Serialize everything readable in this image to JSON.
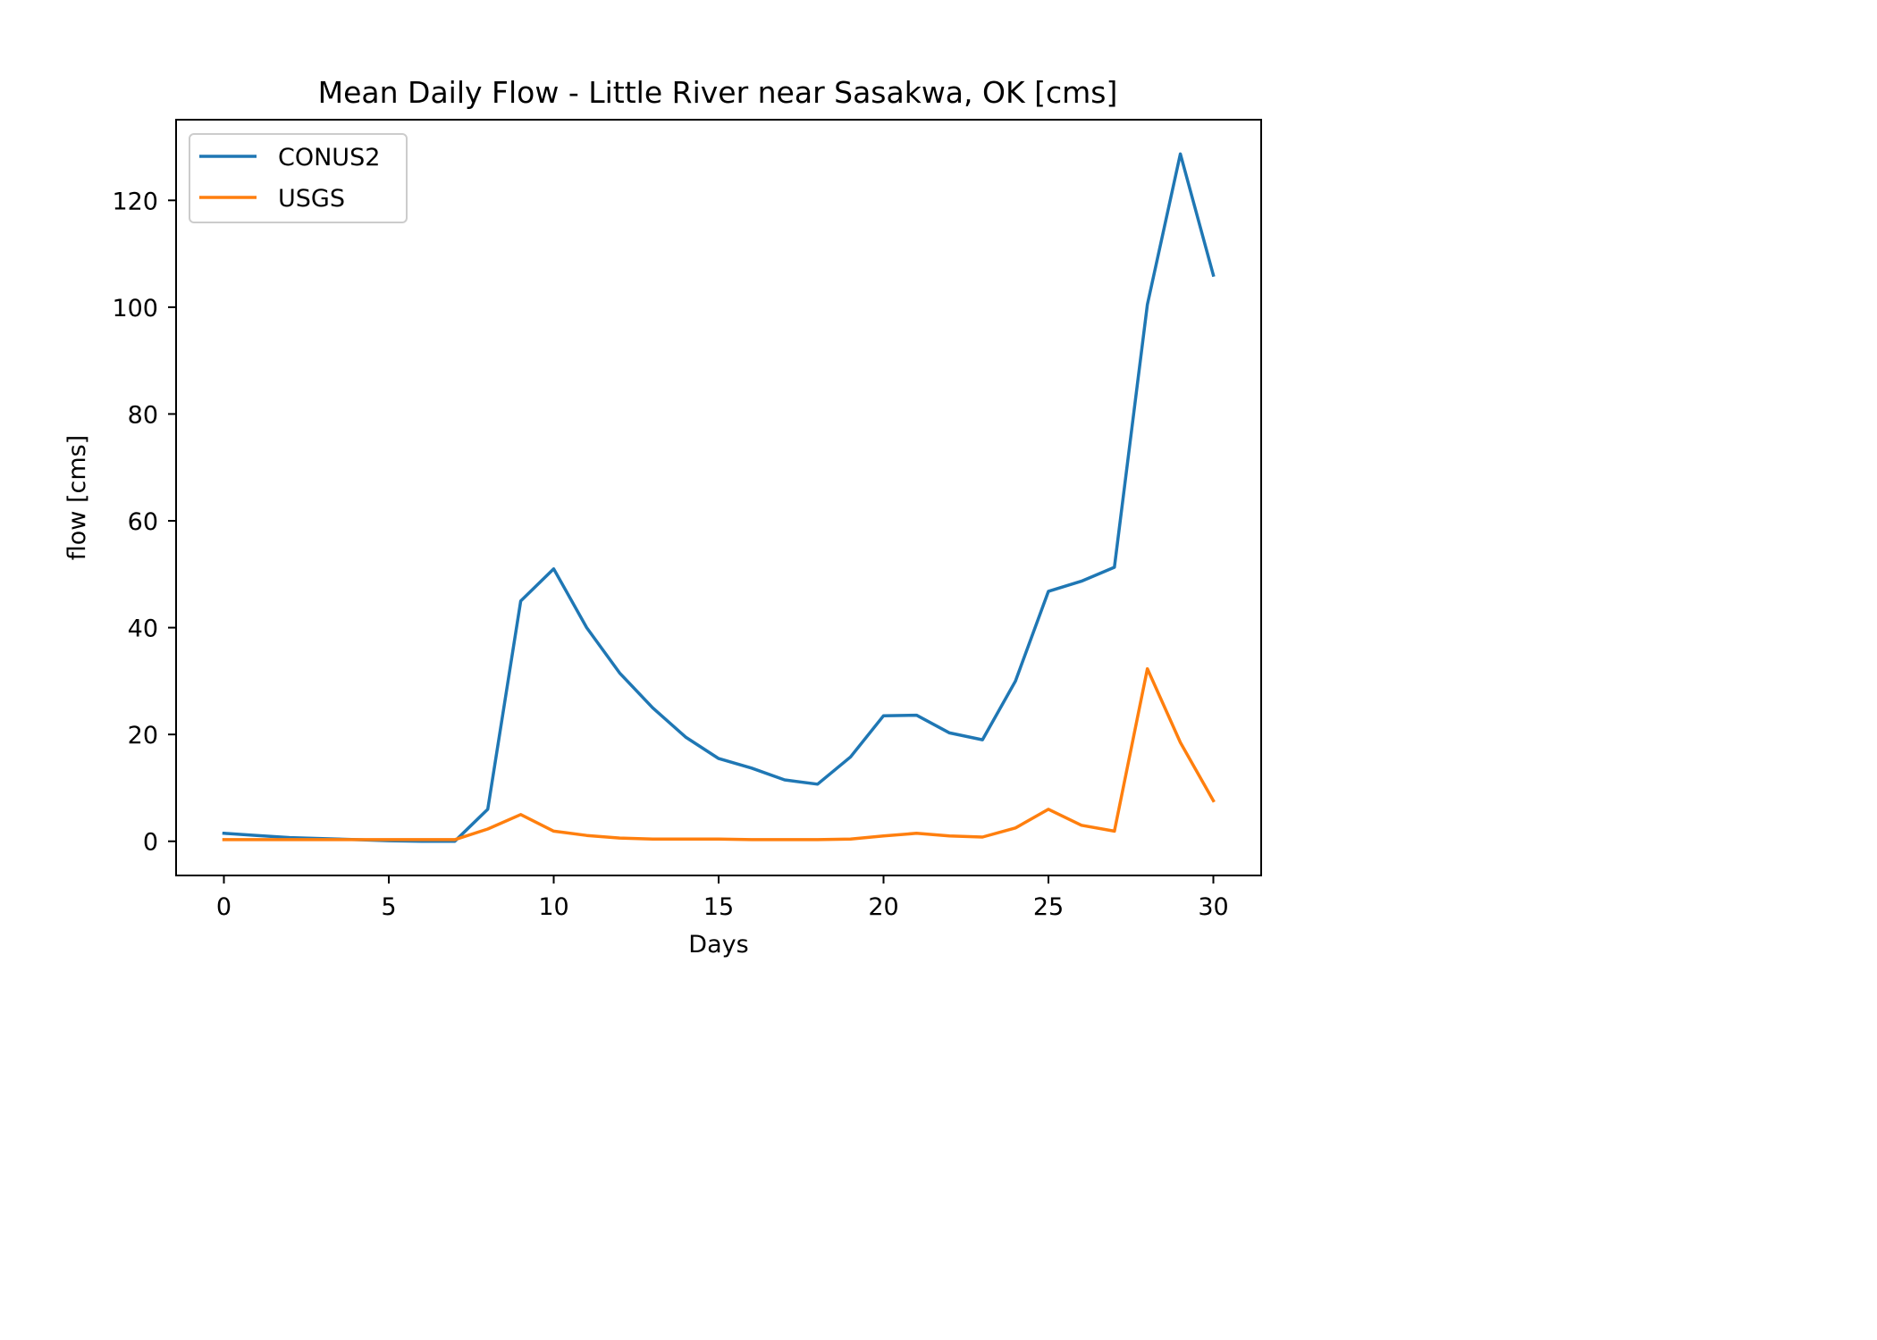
{
  "chart_data": {
    "type": "line",
    "title": "Mean Daily Flow - Little River near Sasakwa, OK [cms]",
    "xlabel": "Days",
    "ylabel": "flow [cms]",
    "xlim": [
      -1.45,
      31.45
    ],
    "ylim": [
      -6.4,
      135.1
    ],
    "xticks": [
      0,
      5,
      10,
      15,
      20,
      25,
      30
    ],
    "yticks": [
      0,
      20,
      40,
      60,
      80,
      100,
      120
    ],
    "grid": false,
    "legend_position": "upper left",
    "x": [
      0,
      1,
      2,
      3,
      4,
      5,
      6,
      7,
      8,
      9,
      10,
      11,
      12,
      13,
      14,
      15,
      16,
      17,
      18,
      19,
      20,
      21,
      22,
      23,
      24,
      25,
      26,
      27,
      28,
      29,
      30
    ],
    "series": [
      {
        "name": "CONUS2",
        "color": "#1f77b4",
        "values": [
          1.5,
          1.1,
          0.7,
          0.5,
          0.3,
          0.1,
          0.0,
          0.0,
          6.0,
          45.0,
          51.0,
          40.0,
          31.5,
          25.0,
          19.5,
          15.5,
          13.7,
          11.5,
          10.7,
          15.8,
          23.5,
          23.6,
          20.3,
          19.0,
          30.0,
          46.8,
          48.7,
          51.3,
          100.5,
          128.7,
          106.0
        ]
      },
      {
        "name": "USGS",
        "color": "#ff7f0e",
        "values": [
          0.3,
          0.3,
          0.3,
          0.3,
          0.3,
          0.3,
          0.3,
          0.3,
          2.3,
          5.0,
          1.9,
          1.1,
          0.6,
          0.4,
          0.4,
          0.4,
          0.3,
          0.3,
          0.3,
          0.4,
          1.0,
          1.5,
          1.0,
          0.8,
          2.5,
          6.0,
          3.0,
          1.9,
          32.3,
          18.5,
          7.6
        ]
      }
    ]
  }
}
